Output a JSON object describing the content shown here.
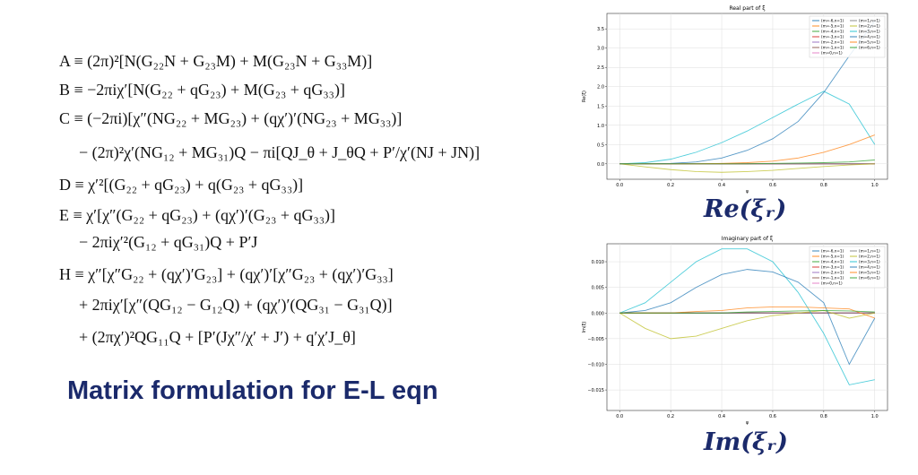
{
  "equations": [
    "A ≡ (2π)²[N(G₂₂N + G₂₃M) + M(G₂₃N + G₃₃M)]",
    "B ≡ −2πiχ′[N(G₂₂ + qG₂₃) + M(G₂₃ + qG₃₃)]",
    "C ≡ (−2πi)[χ″(NG₂₂ + MG₂₃) + (qχ′)′(NG₂₃ + MG₃₃)]",
    "− (2π)²χ′(NG₁₂ + MG₃₁)Q − πi[QJ_θ + J_θQ + P′/χ′(NJ + JN)]",
    "D ≡ χ′²[(G₂₂ + qG₂₃) + q(G₂₃ + qG₃₃)]",
    "E ≡ χ′[χ″(G₂₂ + qG₂₃) + (qχ′)′(G₂₃ + qG₃₃)]",
    "− 2πiχ′²(G₁₂ + qG₃₁)Q + P′J",
    "H ≡ χ″[χ″G₂₂ + (qχ′)′G₂₃] + (qχ′)′[χ″G₂₃ + (qχ′)′G₃₃]",
    "+ 2πiχ′[χ″(QG₁₂ − G₁₂Q) + (qχ′)′(QG₃₁ − G₃₁Q)]",
    "+ (2πχ′)²QG₁₁Q + [P′(Jχ″/χ′ + J′) + q′χ′J_θ]"
  ],
  "heading": "Matrix formulation for E-L eqn",
  "captions": [
    "Re(ξᵣ)",
    "Im(ξᵣ)"
  ],
  "chart_data": [
    {
      "type": "line",
      "title": "Real part of ξ",
      "x_label": "ψ",
      "y_label": "Re(ξ)",
      "grid": true,
      "legend": "upper right",
      "x": [
        0,
        0.1,
        0.2,
        0.3,
        0.4,
        0.5,
        0.6,
        0.7,
        0.8,
        0.9,
        1.0
      ],
      "xlim": [
        -0.05,
        1.05
      ],
      "xticks": [
        {
          "value": 0,
          "label": "0.0"
        },
        0.2,
        0.4,
        0.6,
        0.8,
        {
          "value": 1,
          "label": "1.0"
        }
      ],
      "ylim": [
        -0.4,
        3.9
      ],
      "yticks": [
        {
          "value": 0,
          "label": "0.0"
        },
        0.5,
        {
          "value": 1,
          "label": "1.0"
        },
        1.5,
        {
          "value": 2,
          "label": "2.0"
        },
        2.5,
        {
          "value": 3,
          "label": "3.0"
        },
        3.5
      ],
      "series": [
        {
          "name": "(m=-6,n=1)",
          "color": "#1f77b4",
          "values": [
            0,
            0,
            0,
            0,
            0,
            0,
            0,
            0,
            0,
            0,
            0
          ]
        },
        {
          "name": "(m=-5,n=1)",
          "color": "#ff7f0e",
          "values": [
            0,
            0,
            0,
            0,
            0,
            0,
            0,
            0,
            0,
            0,
            0
          ]
        },
        {
          "name": "(m=-4,n=1)",
          "color": "#2ca02c",
          "values": [
            0,
            0,
            0,
            0,
            0,
            0,
            0,
            0,
            0,
            0,
            0
          ]
        },
        {
          "name": "(m=-3,n=1)",
          "color": "#d62728",
          "values": [
            0,
            0,
            0,
            0,
            0,
            0,
            0,
            0,
            0,
            0,
            0
          ]
        },
        {
          "name": "(m=-2,n=1)",
          "color": "#9467bd",
          "values": [
            0,
            0,
            0,
            0,
            0,
            0,
            0,
            0,
            0,
            0,
            0
          ]
        },
        {
          "name": "(m=-1,n=1)",
          "color": "#8c564b",
          "values": [
            0,
            0,
            0,
            0,
            0,
            0,
            0,
            0,
            0,
            0,
            0
          ]
        },
        {
          "name": "(m=0,n=1)",
          "color": "#e377c2",
          "values": [
            0,
            0,
            0,
            0,
            0,
            0,
            0,
            0,
            0,
            0,
            0
          ]
        },
        {
          "name": "(m=1,n=1)",
          "color": "#7f7f7f",
          "values": [
            0,
            0,
            0,
            0,
            0,
            0,
            0,
            0,
            0,
            0,
            0
          ]
        },
        {
          "name": "(m=2,n=1)",
          "color": "#bcbd22",
          "values": [
            0,
            -0.08,
            -0.15,
            -0.2,
            -0.22,
            -0.2,
            -0.17,
            -0.12,
            -0.07,
            -0.03,
            0
          ]
        },
        {
          "name": "(m=3,n=1)",
          "color": "#17becf",
          "values": [
            0,
            0.03,
            0.12,
            0.3,
            0.55,
            0.85,
            1.2,
            1.55,
            1.88,
            1.55,
            0.5
          ]
        },
        {
          "name": "(m=4,n=1)",
          "color": "#1f77b4",
          "values": [
            0,
            0,
            0.01,
            0.05,
            0.15,
            0.35,
            0.65,
            1.1,
            1.85,
            2.8,
            3.7
          ]
        },
        {
          "name": "(m=5,n=1)",
          "color": "#ff7f0e",
          "values": [
            0,
            0,
            0,
            0,
            0.01,
            0.03,
            0.07,
            0.15,
            0.3,
            0.5,
            0.75
          ]
        },
        {
          "name": "(m=6,n=1)",
          "color": "#2ca02c",
          "values": [
            0,
            0,
            0,
            0,
            0,
            0,
            0.01,
            0.02,
            0.03,
            0.05,
            0.1
          ]
        }
      ]
    },
    {
      "type": "line",
      "title": "Imaginary part of ξ",
      "x_label": "ψ",
      "y_label": "Im(ξ)",
      "grid": true,
      "legend": "upper right",
      "x": [
        0,
        0.1,
        0.2,
        0.3,
        0.4,
        0.5,
        0.6,
        0.7,
        0.8,
        0.9,
        1.0
      ],
      "xlim": [
        -0.05,
        1.05
      ],
      "xticks": [
        {
          "value": 0,
          "label": "0.0"
        },
        0.2,
        0.4,
        0.6,
        0.8,
        {
          "value": 1,
          "label": "1.0"
        }
      ],
      "ylim": [
        -0.019,
        0.0135
      ],
      "yticks": [
        {
          "value": -0.015,
          "label": "−0.015"
        },
        {
          "value": -0.01,
          "label": "−0.010"
        },
        {
          "value": -0.005,
          "label": "−0.005"
        },
        {
          "value": 0,
          "label": "0.000"
        },
        {
          "value": 0.005,
          "label": "0.005"
        },
        {
          "value": 0.01,
          "label": "0.010"
        }
      ],
      "series": [
        {
          "name": "(m=-6,n=1)",
          "color": "#1f77b4",
          "values": [
            0,
            0,
            0,
            0,
            0,
            0,
            0,
            0,
            0,
            0,
            0
          ]
        },
        {
          "name": "(m=-5,n=1)",
          "color": "#ff7f0e",
          "values": [
            0,
            0,
            0,
            0,
            0,
            0,
            0,
            0,
            0,
            0,
            0
          ]
        },
        {
          "name": "(m=-4,n=1)",
          "color": "#2ca02c",
          "values": [
            0,
            0,
            0,
            0,
            0,
            0,
            0,
            0,
            0,
            0,
            0
          ]
        },
        {
          "name": "(m=-3,n=1)",
          "color": "#d62728",
          "values": [
            0,
            0,
            0,
            0,
            0,
            0,
            0,
            0,
            0,
            0,
            0
          ]
        },
        {
          "name": "(m=-2,n=1)",
          "color": "#9467bd",
          "values": [
            0,
            0,
            0,
            0,
            0,
            0,
            0,
            0,
            0,
            0,
            0
          ]
        },
        {
          "name": "(m=-1,n=1)",
          "color": "#8c564b",
          "values": [
            0,
            0,
            0,
            0,
            0,
            0,
            0,
            0,
            0,
            0,
            0
          ]
        },
        {
          "name": "(m=0,n=1)",
          "color": "#e377c2",
          "values": [
            0,
            0,
            0,
            0,
            0,
            0,
            0,
            0,
            0,
            0,
            0
          ]
        },
        {
          "name": "(m=1,n=1)",
          "color": "#7f7f7f",
          "values": [
            0,
            0,
            0,
            0,
            0,
            0,
            0,
            0,
            0,
            0,
            0
          ]
        },
        {
          "name": "(m=2,n=1)",
          "color": "#bcbd22",
          "values": [
            0,
            -0.003,
            -0.005,
            -0.0045,
            -0.003,
            -0.0015,
            -0.0005,
            0,
            0.0005,
            -0.001,
            0
          ]
        },
        {
          "name": "(m=3,n=1)",
          "color": "#17becf",
          "values": [
            0,
            0.002,
            0.006,
            0.01,
            0.0125,
            0.0125,
            0.01,
            0.004,
            -0.004,
            -0.014,
            -0.013
          ]
        },
        {
          "name": "(m=4,n=1)",
          "color": "#1f77b4",
          "values": [
            0,
            0.0005,
            0.002,
            0.005,
            0.0075,
            0.0085,
            0.008,
            0.006,
            0.002,
            -0.01,
            -0.001
          ]
        },
        {
          "name": "(m=5,n=1)",
          "color": "#ff7f0e",
          "values": [
            0,
            0,
            0,
            0.0003,
            0.0005,
            0.001,
            0.0012,
            0.0012,
            0.001,
            0.0008,
            -0.001
          ]
        },
        {
          "name": "(m=6,n=1)",
          "color": "#2ca02c",
          "values": [
            0,
            0,
            0,
            0,
            0,
            0.0002,
            0.0003,
            0.0004,
            0.0005,
            0.0004,
            0.0002
          ]
        }
      ]
    }
  ]
}
